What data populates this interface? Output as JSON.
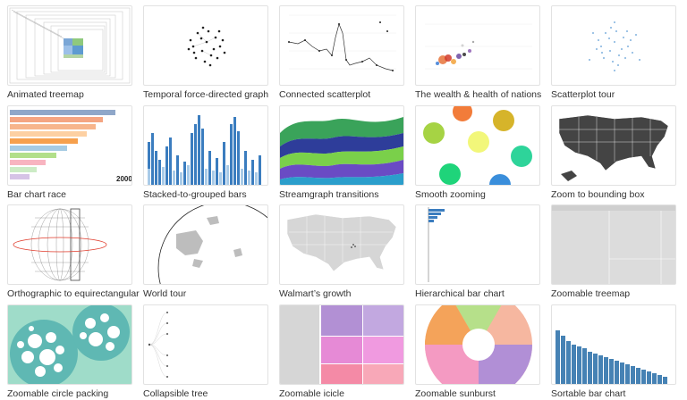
{
  "gallery": {
    "items": [
      {
        "title": "Animated treemap"
      },
      {
        "title": "Temporal force-directed graph"
      },
      {
        "title": "Connected scatterplot"
      },
      {
        "title": "The wealth & health of nations"
      },
      {
        "title": "Scatterplot tour"
      },
      {
        "title": "Bar chart race"
      },
      {
        "title": "Stacked-to-grouped bars"
      },
      {
        "title": "Streamgraph transitions"
      },
      {
        "title": "Smooth zooming"
      },
      {
        "title": "Zoom to bounding box"
      },
      {
        "title": "Orthographic to equirectangular"
      },
      {
        "title": "World tour"
      },
      {
        "title": "Walmart’s growth"
      },
      {
        "title": "Hierarchical bar chart"
      },
      {
        "title": "Zoomable treemap"
      },
      {
        "title": "Zoomable circle packing"
      },
      {
        "title": "Collapsible tree"
      },
      {
        "title": "Zoomable icicle"
      },
      {
        "title": "Zoomable sunburst"
      },
      {
        "title": "Sortable bar chart"
      }
    ],
    "bar_race_year": "2000"
  }
}
